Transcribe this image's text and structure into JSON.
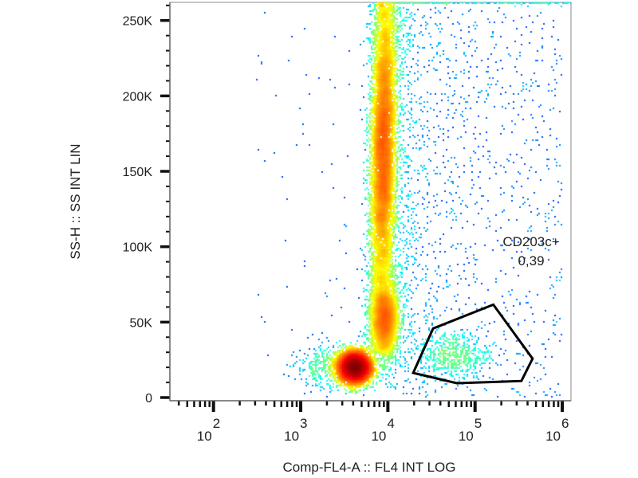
{
  "chart_data": {
    "type": "scatter",
    "subtype": "flow-cytometry density dot plot",
    "xlabel": "Comp-FL4-A :: FL4 INT LOG",
    "ylabel": "SS-H :: SS INT LIN",
    "x_scale": "log",
    "xlim": [
      31.6,
      1260000
    ],
    "ylim": [
      0,
      262000
    ],
    "x_ticks": [
      {
        "value": 100,
        "base": "10",
        "exp": "2"
      },
      {
        "value": 1000,
        "base": "10",
        "exp": "3"
      },
      {
        "value": 10000,
        "base": "10",
        "exp": "4"
      },
      {
        "value": 100000,
        "base": "10",
        "exp": "5"
      },
      {
        "value": 1000000,
        "base": "10",
        "exp": "6"
      }
    ],
    "y_ticks": [
      {
        "value": 0,
        "label": "0"
      },
      {
        "value": 50000,
        "label": "50K"
      },
      {
        "value": 100000,
        "label": "100K"
      },
      {
        "value": 150000,
        "label": "150K"
      },
      {
        "value": 200000,
        "label": "200K"
      },
      {
        "value": 250000,
        "label": "250K"
      }
    ],
    "y_minor_step": 10000,
    "colormap": "jet (blue = low density, red = high density)",
    "grid": false,
    "gate": {
      "name": "CD203c+",
      "value": "0,39",
      "polygon": [
        [
          33000,
          45800
        ],
        [
          162000,
          61600
        ],
        [
          457000,
          25800
        ],
        [
          340000,
          11000
        ],
        [
          61700,
          9500
        ],
        [
          19500,
          16300
        ]
      ],
      "color": "#000000"
    }
  }
}
